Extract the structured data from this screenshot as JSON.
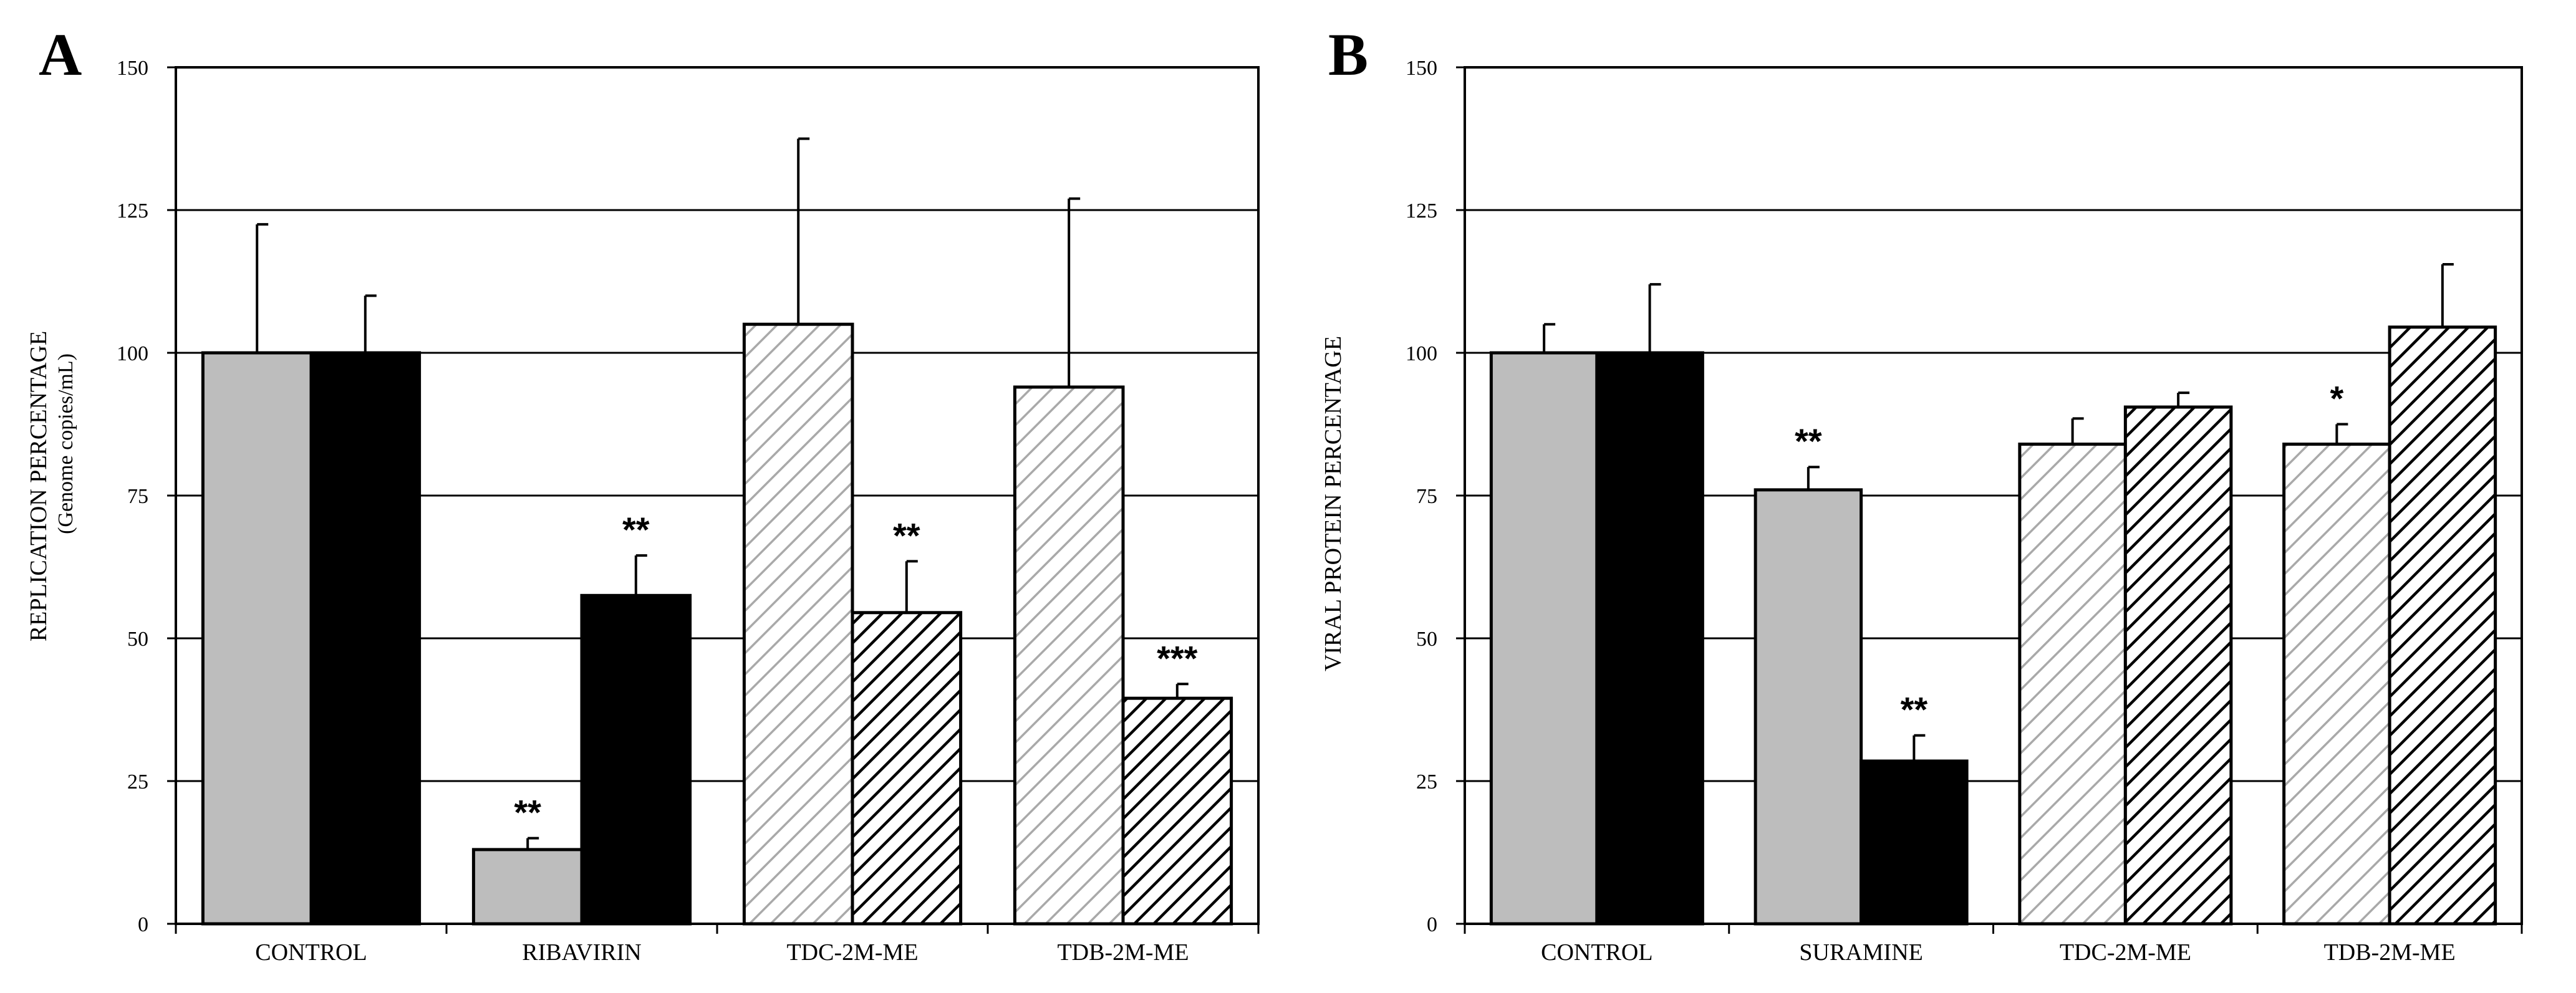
{
  "colors": {
    "gray": "#bdbdbd",
    "black": "#000000",
    "hatch_light": "#a9a9a9",
    "hatch_dark": "#000000",
    "grid": "#000000",
    "background": "#ffffff"
  },
  "chart_data": [
    {
      "panel": "A",
      "type": "bar",
      "ylabel": "REPLICATION PERCENTAGE",
      "ylabel_sub": "(Genome copies/mL)",
      "ylim": [
        0,
        150
      ],
      "yticks": [
        0,
        25,
        50,
        75,
        100,
        125,
        150
      ],
      "grid": true,
      "categories": [
        "CONTROL",
        "RIBAVIRIN",
        "TDC-2M-ME",
        "TDB-2M-ME"
      ],
      "bars": [
        {
          "category": "CONTROL",
          "fill": "gray",
          "value": 100,
          "error": 22.5,
          "sig": ""
        },
        {
          "category": "CONTROL",
          "fill": "black",
          "value": 100,
          "error": 10,
          "sig": ""
        },
        {
          "category": "RIBAVIRIN",
          "fill": "gray",
          "value": 13,
          "error": 2,
          "sig": "**"
        },
        {
          "category": "RIBAVIRIN",
          "fill": "black",
          "value": 57.5,
          "error": 7,
          "sig": "**"
        },
        {
          "category": "TDC-2M-ME",
          "fill": "hatch-light",
          "value": 105,
          "error": 32.5,
          "sig": ""
        },
        {
          "category": "TDC-2M-ME",
          "fill": "hatch-dark",
          "value": 54.5,
          "error": 9,
          "sig": "**"
        },
        {
          "category": "TDB-2M-ME",
          "fill": "hatch-light",
          "value": 94,
          "error": 33,
          "sig": ""
        },
        {
          "category": "TDB-2M-ME",
          "fill": "hatch-dark",
          "value": 39.5,
          "error": 2.5,
          "sig": "***"
        }
      ]
    },
    {
      "panel": "B",
      "type": "bar",
      "ylabel": "VIRAL PROTEIN PERCENTAGE",
      "ylabel_sub": "",
      "ylim": [
        0,
        150
      ],
      "yticks": [
        0,
        25,
        50,
        75,
        100,
        125,
        150
      ],
      "grid": true,
      "categories": [
        "CONTROL",
        "SURAMINE",
        "TDC-2M-ME",
        "TDB-2M-ME"
      ],
      "bars": [
        {
          "category": "CONTROL",
          "fill": "gray",
          "value": 100,
          "error": 5,
          "sig": ""
        },
        {
          "category": "CONTROL",
          "fill": "black",
          "value": 100,
          "error": 12,
          "sig": ""
        },
        {
          "category": "SURAMINE",
          "fill": "gray",
          "value": 76,
          "error": 4,
          "sig": "**"
        },
        {
          "category": "SURAMINE",
          "fill": "black",
          "value": 28.5,
          "error": 4.5,
          "sig": "**"
        },
        {
          "category": "TDC-2M-ME",
          "fill": "hatch-light",
          "value": 84,
          "error": 4.5,
          "sig": ""
        },
        {
          "category": "TDC-2M-ME",
          "fill": "hatch-dark",
          "value": 90.5,
          "error": 2.5,
          "sig": ""
        },
        {
          "category": "TDB-2M-ME",
          "fill": "hatch-light",
          "value": 84,
          "error": 3.5,
          "sig": "*"
        },
        {
          "category": "TDB-2M-ME",
          "fill": "hatch-dark",
          "value": 104.5,
          "error": 11,
          "sig": ""
        }
      ]
    }
  ]
}
